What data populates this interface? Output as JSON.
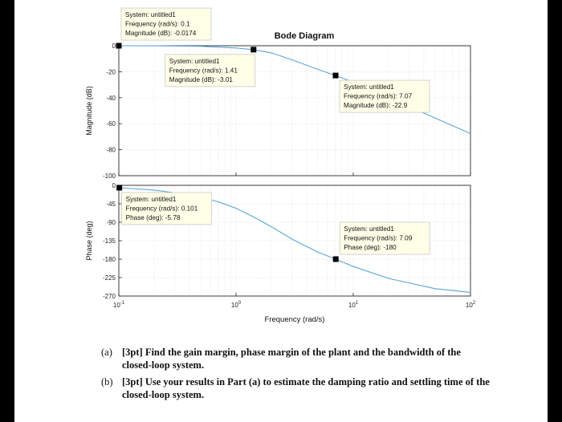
{
  "chart_data": {
    "type": "line",
    "title": "Bode Diagram",
    "xlabel": "Frequency (rad/s)",
    "xscale": "log",
    "xlim": [
      0.1,
      100
    ],
    "x_ticks": [
      "10^-1",
      "10^0",
      "10^1",
      "10^2"
    ],
    "grid": true,
    "panels": [
      {
        "name": "magnitude",
        "ylabel": "Magnitude (dB)",
        "ylim": [
          -100,
          0
        ],
        "y_ticks": [
          "0",
          "-20",
          "-40",
          "-60",
          "-80",
          "-100"
        ],
        "series": [
          {
            "x": [
              0.1,
              0.2,
              0.5,
              1,
              1.41,
              2,
              3,
              5,
              7.07,
              10,
              20,
              50,
              100
            ],
            "y": [
              -0.0174,
              -0.07,
              -0.45,
              -1.7,
              -3.01,
              -5.5,
              -10.8,
              -18.2,
              -22.9,
              -28.0,
              -39.8,
              -55.6,
              -67.6
            ]
          }
        ],
        "annotations": [
          {
            "lines": [
              "System: untitled1",
              "Frequency (rad/s): 0.1",
              "Magnitude (dB): -0.0174"
            ],
            "x": 0.1,
            "y": -0.0174
          },
          {
            "lines": [
              "System: untitled1",
              "Frequency (rad/s): 1.41",
              "Magnitude (dB): -3.01"
            ],
            "x": 1.41,
            "y": -3.01
          },
          {
            "lines": [
              "System: untitled1",
              "Frequency (rad/s): 7.07",
              "Magnitude (dB): -22.9"
            ],
            "x": 7.07,
            "y": -22.9
          }
        ]
      },
      {
        "name": "phase",
        "ylabel": "Phase (deg)",
        "ylim": [
          -270,
          0
        ],
        "y_ticks": [
          "0",
          "-45",
          "-90",
          "-135",
          "-180",
          "-225",
          "-270"
        ],
        "series": [
          {
            "x": [
              0.1,
              0.2,
              0.4,
              0.7,
              1,
              1.5,
              2,
              3,
              5,
              7.09,
              10,
              20,
              50,
              100
            ],
            "y": [
              -5.78,
              -11.6,
              -23.1,
              -40,
              -56,
              -81,
              -101,
              -131,
              -163,
              -180,
              -198,
              -227,
              -252,
              -261
            ]
          }
        ],
        "annotations": [
          {
            "lines": [
              "System: untitled1",
              "Frequency (rad/s): 0.101",
              "Phase (deg): -5.78"
            ],
            "x": 0.101,
            "y": -5.78
          },
          {
            "lines": [
              "System: untitled1",
              "Frequency (rad/s): 7.09",
              "Phase (deg): -180"
            ],
            "x": 7.09,
            "y": -180
          }
        ]
      }
    ]
  },
  "questions": [
    {
      "tag": "(a)",
      "text": "[3pt] Find the gain margin, phase margin of the plant and the bandwidth of the closed-loop system."
    },
    {
      "tag": "(b)",
      "text": "[3pt] Use your results in Part (a) to estimate the damping ratio and settling time of the closed-loop system."
    }
  ],
  "colors": {
    "line": "#5aa6d8",
    "axis": "#262626",
    "grid": "#e6e6e6",
    "marker": "#000000"
  }
}
